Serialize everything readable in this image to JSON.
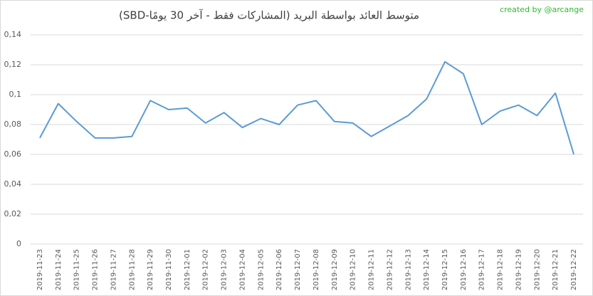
{
  "chart_data": {
    "type": "line",
    "title": "متوسط العائد بواسطة البريد (المشاركات فقط - آخر 30 يومًا-SBD)",
    "annotation": "created by @arcange",
    "x": [
      "2019-11-23",
      "2019-11-24",
      "2019-11-25",
      "2019-11-26",
      "2019-11-27",
      "2019-11-28",
      "2019-11-29",
      "2019-11-30",
      "2019-12-01",
      "2019-12-02",
      "2019-12-03",
      "2019-12-04",
      "2019-12-05",
      "2019-12-06",
      "2019-12-07",
      "2019-12-08",
      "2019-12-09",
      "2019-12-10",
      "2019-12-11",
      "2019-12-12",
      "2019-12-13",
      "2019-12-14",
      "2019-12-15",
      "2019-12-16",
      "2019-12-17",
      "2019-12-18",
      "2019-12-19",
      "2019-12-20",
      "2019-12-21",
      "2019-12-22"
    ],
    "values": [
      0.071,
      0.094,
      0.082,
      0.071,
      0.071,
      0.072,
      0.096,
      0.09,
      0.091,
      0.081,
      0.088,
      0.078,
      0.084,
      0.08,
      0.093,
      0.096,
      0.082,
      0.081,
      0.072,
      0.079,
      0.086,
      0.097,
      0.122,
      0.114,
      0.08,
      0.089,
      0.093,
      0.086,
      0.101,
      0.06
    ],
    "color": "#5b9bd5",
    "ylim": [
      0,
      0.14
    ],
    "yticks": [
      0,
      {
        "value": 0.02,
        "label": "0,02"
      },
      {
        "value": 0.04,
        "label": "0,04"
      },
      {
        "value": 0.06,
        "label": "0,06"
      },
      {
        "value": 0.08,
        "label": "0,08"
      },
      {
        "value": 0.1,
        "label": "0,1"
      },
      {
        "value": 0.12,
        "label": "0,12"
      },
      {
        "value": 0.14,
        "label": "0,14"
      }
    ],
    "grid": true
  }
}
